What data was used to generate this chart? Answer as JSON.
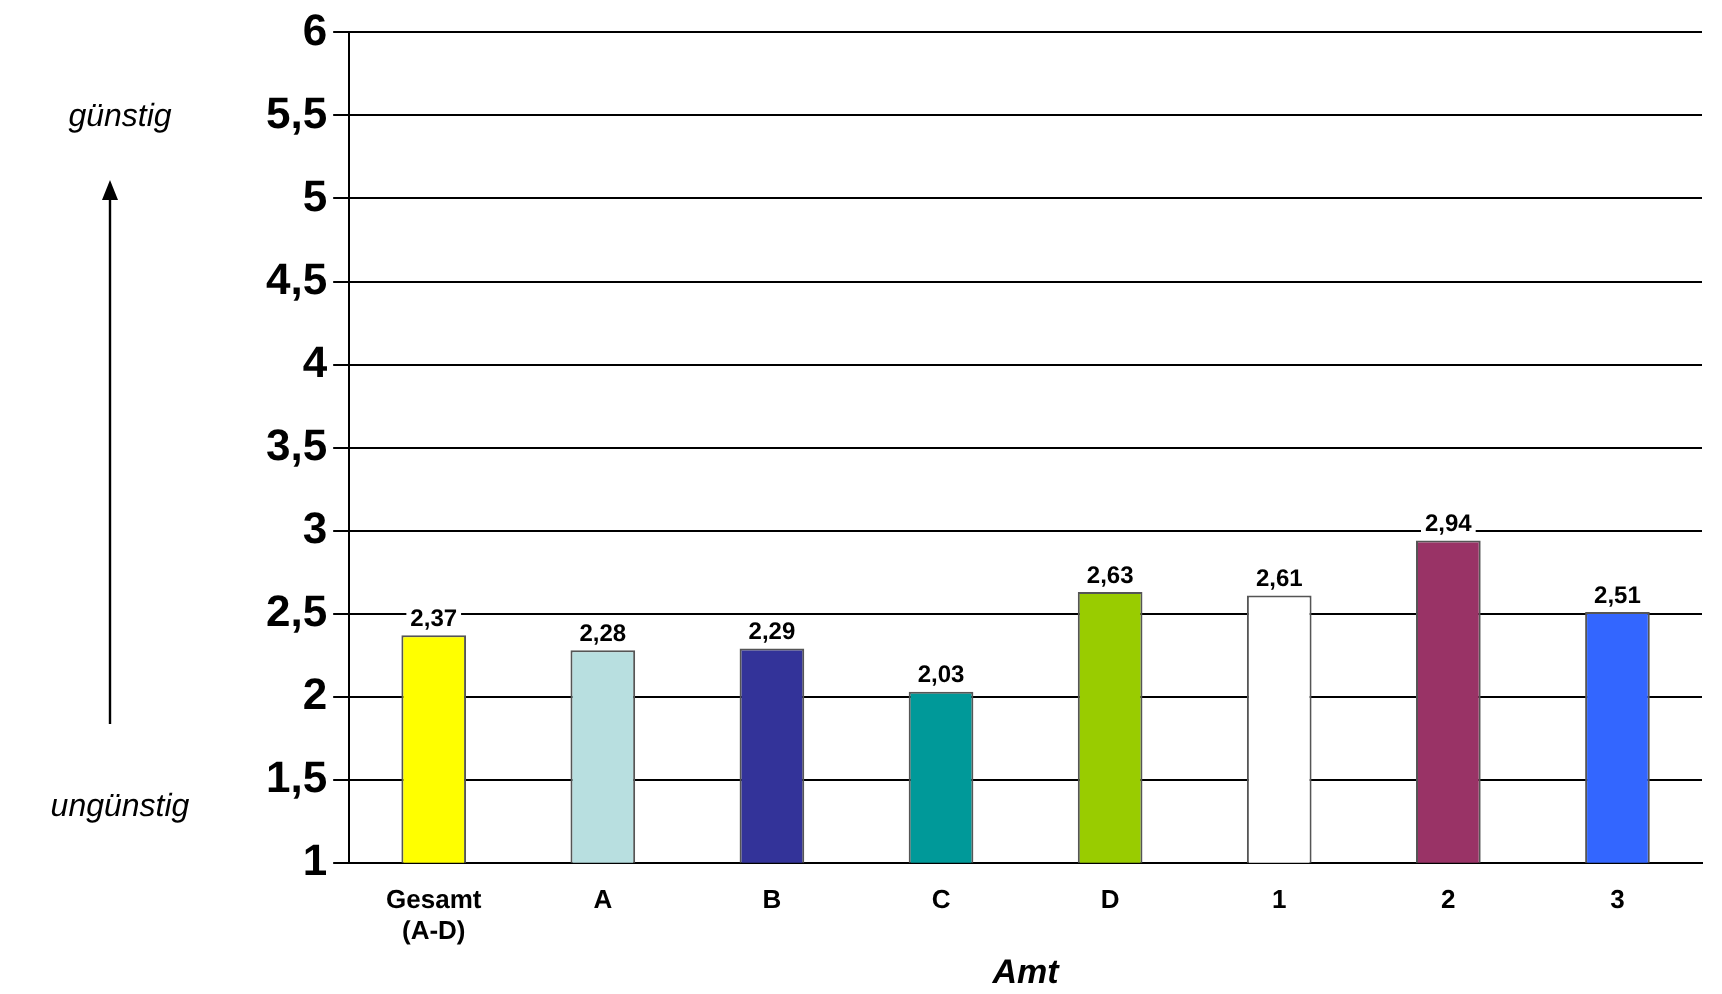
{
  "chart_data": {
    "type": "bar",
    "xlabel": "Amt",
    "categories": [
      "Gesamt (A-D)",
      "A",
      "B",
      "C",
      "D",
      "1",
      "2",
      "3"
    ],
    "values": [
      2.37,
      2.28,
      2.29,
      2.03,
      2.63,
      2.61,
      2.94,
      2.51
    ],
    "colors": [
      "#ffff00",
      "#b8dfe0",
      "#333399",
      "#009999",
      "#99cc00",
      "#ffffff",
      "#993366",
      "#3366ff"
    ],
    "value_labels": [
      "2,37",
      "2,28",
      "2,29",
      "2,03",
      "2,63",
      "2,61",
      "2,94",
      "2,51"
    ],
    "ylim": [
      1,
      6
    ],
    "yticks": [
      1,
      {
        "value": 1.5,
        "label": "1,5"
      },
      2,
      {
        "value": 2.5,
        "label": "2,5"
      },
      3,
      {
        "value": 3.5,
        "label": "3,5"
      },
      4,
      {
        "value": 4.5,
        "label": "4,5"
      },
      5,
      {
        "value": 5.5,
        "label": "5,5"
      },
      6
    ],
    "grid": "y",
    "annotations": [
      "günstig",
      "ungünstig"
    ]
  }
}
